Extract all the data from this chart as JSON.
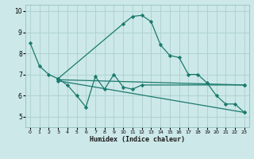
{
  "xlabel": "Humidex (Indice chaleur)",
  "bg_color": "#cce8e8",
  "line_color": "#1a7a6e",
  "grid_color": "#aad0d0",
  "xlim": [
    -0.5,
    23.5
  ],
  "ylim": [
    4.5,
    10.3
  ],
  "yticks": [
    5,
    6,
    7,
    8,
    9,
    10
  ],
  "xticks": [
    0,
    1,
    2,
    3,
    4,
    5,
    6,
    7,
    8,
    9,
    10,
    11,
    12,
    13,
    14,
    15,
    16,
    17,
    18,
    19,
    20,
    21,
    22,
    23
  ],
  "series": [
    {
      "x": [
        0,
        1,
        2,
        3,
        10,
        11,
        12,
        13,
        14,
        15,
        16,
        17,
        18,
        19,
        20,
        21,
        22,
        23
      ],
      "y": [
        8.5,
        7.4,
        7.0,
        6.8,
        9.4,
        9.75,
        9.8,
        9.5,
        8.4,
        7.9,
        7.8,
        7.0,
        7.0,
        6.6,
        6.0,
        5.6,
        5.6,
        5.2
      ]
    },
    {
      "x": [
        3,
        4,
        5,
        6,
        7,
        8,
        9,
        10,
        11,
        12,
        23
      ],
      "y": [
        6.8,
        6.5,
        6.0,
        5.45,
        6.9,
        6.3,
        7.0,
        6.4,
        6.3,
        6.5,
        6.5
      ]
    },
    {
      "x": [
        3,
        23
      ],
      "y": [
        6.75,
        6.5
      ]
    },
    {
      "x": [
        3,
        23
      ],
      "y": [
        6.7,
        5.2
      ]
    }
  ]
}
